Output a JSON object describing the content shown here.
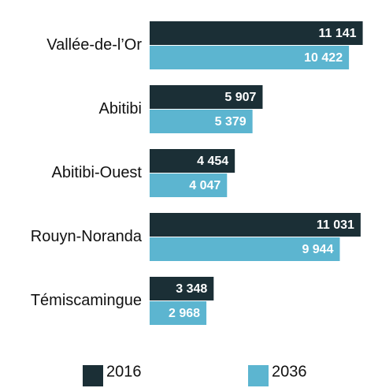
{
  "chart_data": {
    "type": "barh",
    "categories": [
      "Vallée-de-l’Or",
      "Abitibi",
      "Abitibi-Ouest",
      "Rouyn-Noranda",
      "Témiscamingue"
    ],
    "series": [
      {
        "name": "2016",
        "color": "#1b2f36",
        "values": [
          11141,
          5907,
          4454,
          11031,
          3348
        ],
        "value_labels": [
          "11 141",
          "5 907",
          "4 454",
          "11 031",
          "3 348"
        ]
      },
      {
        "name": "2036",
        "color": "#5cb5d0",
        "values": [
          10422,
          5379,
          4047,
          9944,
          2968
        ],
        "value_labels": [
          "10 422",
          "5 379",
          "4 047",
          "9 944",
          "2 968"
        ]
      }
    ],
    "xlim": [
      0,
      11200
    ]
  }
}
